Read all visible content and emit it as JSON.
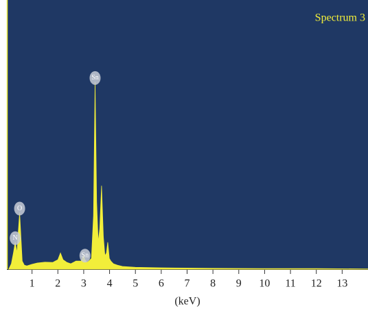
{
  "chart_data": {
    "type": "area",
    "legend_text": "Spectrum 3",
    "x_label": "(keV)",
    "color": "#f2ee3a",
    "background": "#1f3864",
    "x": [
      0.1,
      0.2,
      0.28,
      0.35,
      0.42,
      0.47,
      0.52,
      0.57,
      0.62,
      0.7,
      0.8,
      1.0,
      1.2,
      1.5,
      1.8,
      2.0,
      2.1,
      2.2,
      2.35,
      2.5,
      2.7,
      2.9,
      3.0,
      3.05,
      3.12,
      3.2,
      3.3,
      3.38,
      3.44,
      3.5,
      3.56,
      3.62,
      3.69,
      3.76,
      3.82,
      3.88,
      3.93,
      3.99,
      4.05,
      4.15,
      4.3,
      4.5,
      5.0,
      6.0,
      7.0,
      8.0,
      10,
      12,
      14
    ],
    "values": [
      0,
      2,
      6,
      10,
      6,
      14,
      21,
      12,
      3,
      1.5,
      1.2,
      1.8,
      2.3,
      2.6,
      2.5,
      3.5,
      6,
      3.5,
      2.5,
      2,
      3,
      3,
      5,
      3.5,
      2.5,
      3,
      4,
      20,
      69.5,
      25,
      10,
      15,
      31,
      12,
      5,
      6,
      10,
      4,
      3,
      2,
      1.5,
      1,
      0.7,
      0.5,
      0.4,
      0.3,
      0.2,
      0.2,
      0.1
    ],
    "peak_labels": [
      {
        "label": "N",
        "x": 0.35
      },
      {
        "label": "O",
        "x": 0.52
      },
      {
        "label": "Sn",
        "x": 3.05
      },
      {
        "label": "Sn",
        "x": 3.44
      }
    ],
    "xlim": [
      0,
      14
    ],
    "ylim": [
      0,
      100
    ],
    "xticks": [
      1,
      2,
      3,
      4,
      5,
      6,
      7,
      8,
      9,
      10,
      11,
      12,
      13
    ]
  }
}
